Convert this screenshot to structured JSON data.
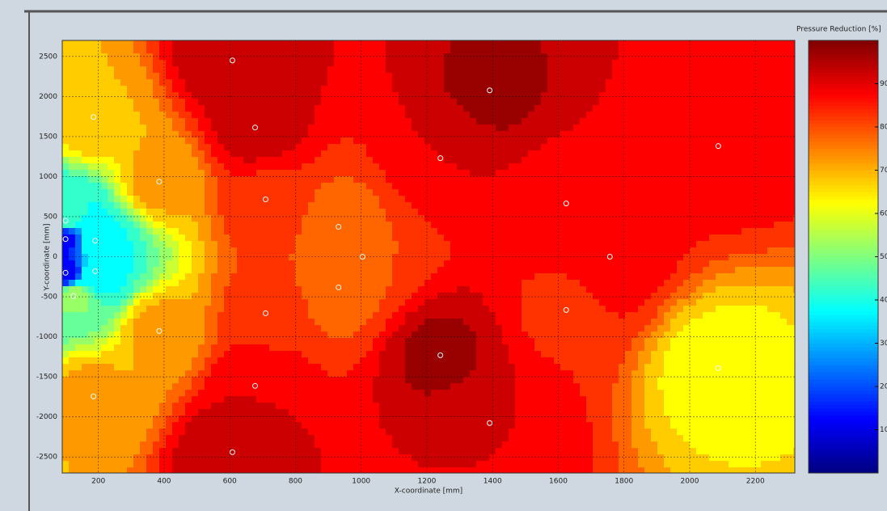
{
  "chart_data": {
    "type": "contour",
    "xlabel": "X-coordinate [mm]",
    "ylabel": "Y-coordinate [mm]",
    "colorbar_title": "Pressure Reduction [%]",
    "colormap": "jet",
    "clim": [
      0,
      100
    ],
    "cticks": [
      10,
      20,
      30,
      40,
      50,
      60,
      70,
      80,
      90
    ],
    "levels_step": 5,
    "xlim": [
      90,
      2320
    ],
    "ylim": [
      -2700,
      2700
    ],
    "xticks": [
      200,
      400,
      600,
      800,
      1000,
      1200,
      1400,
      1600,
      1800,
      2000,
      2200
    ],
    "yticks": [
      2500,
      2000,
      1500,
      1000,
      500,
      0,
      -500,
      -1000,
      -1500,
      -2000,
      -2500
    ],
    "grid": true,
    "x": [
      608,
      1391,
      677,
      185,
      2087,
      1241,
      385,
      709,
      1624,
      931,
      1004,
      1757,
      931,
      709,
      1624,
      385,
      1241,
      2087,
      677,
      185,
      1391,
      608,
      100,
      100,
      190,
      100,
      190,
      124
    ],
    "y": [
      2450,
      2077,
      1613,
      1744,
      1381,
      1230,
      937,
      716,
      665,
      373,
      0,
      0,
      -383,
      -706,
      -665,
      -927,
      -1230,
      -1390,
      -1613,
      -1744,
      -2077,
      -2440,
      450,
      220,
      200,
      -200,
      -180,
      -490
    ],
    "values": [
      95,
      96,
      93,
      70,
      88,
      90,
      72,
      84,
      88,
      78,
      80,
      88,
      78,
      83,
      84,
      72,
      96,
      62,
      90,
      72,
      90,
      95,
      45,
      12,
      40,
      10,
      38,
      52
    ]
  }
}
